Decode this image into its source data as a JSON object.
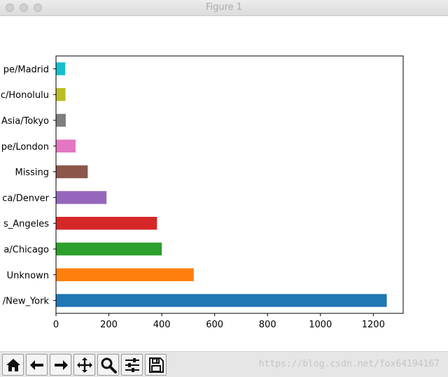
{
  "window": {
    "title": "Figure 1"
  },
  "chart_data": {
    "type": "bar",
    "orientation": "horizontal",
    "categories": [
      "America/New_York",
      "Unknown",
      "America/Chicago",
      "America/Los_Angeles",
      "America/Denver",
      "Missing",
      "Europe/London",
      "Asia/Tokyo",
      "Pacific/Honolulu",
      "Europe/Madrid"
    ],
    "visible_labels": [
      "/New_York",
      "Unknown",
      "a/Chicago",
      "s_Angeles",
      "ca/Denver",
      "Missing",
      "pe/London",
      "Asia/Tokyo",
      "c/Honolulu",
      "pe/Madrid"
    ],
    "values": [
      1251,
      521,
      400,
      382,
      191,
      120,
      74,
      37,
      36,
      35
    ],
    "colors": [
      "#1f77b4",
      "#ff7f0e",
      "#2ca02c",
      "#d62728",
      "#9467bd",
      "#8c564b",
      "#e377c2",
      "#7f7f7f",
      "#bcbd22",
      "#17becf"
    ],
    "xlim": [
      0,
      1313
    ],
    "xticks": [
      0,
      200,
      400,
      600,
      800,
      1000,
      1200
    ],
    "grid": false
  },
  "toolbar": {
    "buttons": [
      {
        "icon": "home-icon"
      },
      {
        "icon": "back-arrow-icon"
      },
      {
        "icon": "forward-arrow-icon"
      },
      {
        "icon": "pan-move-icon"
      },
      {
        "icon": "zoom-magnifier-icon"
      },
      {
        "icon": "subplots-sliders-icon"
      },
      {
        "icon": "save-floppy-icon"
      }
    ]
  },
  "watermark": "https://blog.csdn.net/fox64194167"
}
